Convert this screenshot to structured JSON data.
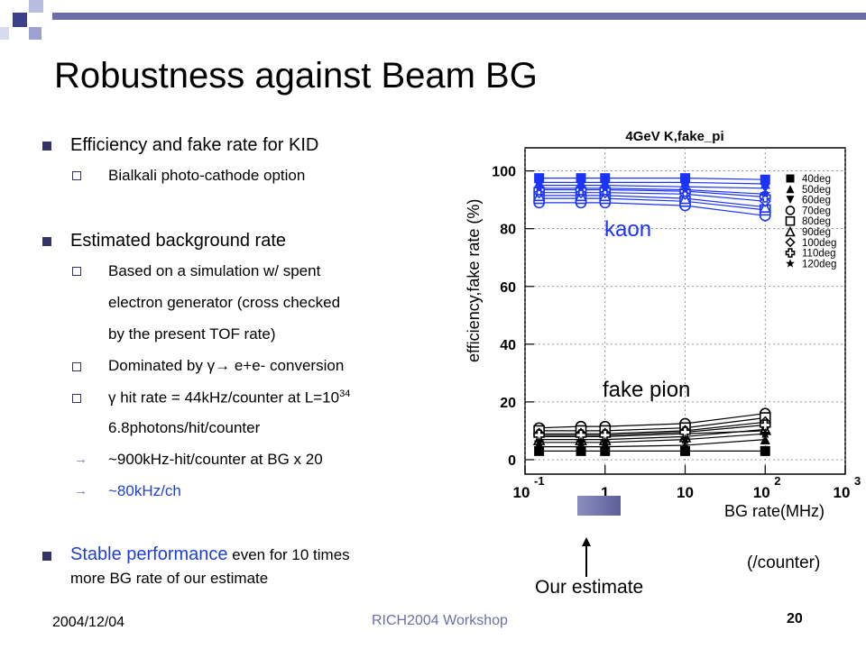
{
  "slide": {
    "title": "Robustness against Beam BG",
    "bullets": [
      {
        "text": "Efficiency and fake rate for KID"
      },
      {
        "text": "Bialkali photo-cathode option"
      },
      {
        "text": "Estimated background rate"
      },
      {
        "text": "Based on a simulation w/ spent"
      },
      {
        "text": "electron generator (cross checked"
      },
      {
        "text": "by the present TOF rate)"
      },
      {
        "text": "Dominated by γ→ e+e- conversion"
      },
      {
        "text": "γ hit rate = 44kHz/counter at L=10"
      },
      {
        "sup": "34"
      },
      {
        "text": "6.8photons/hit/counter"
      },
      {
        "text": "~900kHz-hit/counter at BG x 20"
      },
      {
        "text": "~80kHz/ch"
      },
      {
        "text_blue": "Stable performance",
        "text_rest": " even for 10 times"
      },
      {
        "text": "more BG rate of our estimate"
      }
    ],
    "estimate_label": "Our estimate",
    "unit_note": "(/counter)",
    "footer": {
      "date": "2004/12/04",
      "center": "RICH2004 Workshop",
      "page": "20"
    }
  },
  "chart_data": {
    "type": "scatter",
    "title": "4GeV K,fake_pi",
    "xlabel": "BG rate(MHz)",
    "ylabel": "efficiency,fake rate (%)",
    "x_scale": "log",
    "xlim": [
      0.1,
      1000
    ],
    "ylim": [
      -5,
      108
    ],
    "x_tick_labels": [
      "10^-1",
      "1",
      "10",
      "10^2",
      "10^3"
    ],
    "y_ticks": [
      0,
      20,
      40,
      60,
      80,
      100
    ],
    "annotations": [
      "kaon",
      "fake pion"
    ],
    "legend_position": "right",
    "x": [
      0.15,
      0.5,
      1,
      10,
      100
    ],
    "series": [
      {
        "name": "40deg",
        "group": "kaon",
        "values": [
          97.5,
          97.5,
          97.5,
          97.5,
          97
        ]
      },
      {
        "name": "50deg",
        "group": "kaon",
        "values": [
          96,
          96,
          96,
          96,
          95.5
        ]
      },
      {
        "name": "60deg",
        "group": "kaon",
        "values": [
          95,
          95,
          95,
          94.5,
          94
        ]
      },
      {
        "name": "70deg",
        "group": "kaon",
        "values": [
          89,
          89,
          89,
          88,
          84.5
        ]
      },
      {
        "name": "80deg",
        "group": "kaon",
        "values": [
          90.5,
          90.5,
          90.5,
          89.5,
          86.5
        ]
      },
      {
        "name": "90deg",
        "group": "kaon",
        "values": [
          91.5,
          91.5,
          91.5,
          90.5,
          87.5
        ]
      },
      {
        "name": "100deg",
        "group": "kaon",
        "values": [
          92.5,
          92.5,
          92.5,
          92,
          89.5
        ]
      },
      {
        "name": "110deg",
        "group": "kaon",
        "values": [
          93.5,
          93.5,
          93.5,
          93,
          91
        ]
      },
      {
        "name": "120deg",
        "group": "kaon",
        "values": [
          94,
          94,
          94,
          93.5,
          92
        ]
      },
      {
        "name": "40deg",
        "group": "fake pion",
        "values": [
          3,
          3,
          3,
          3,
          3
        ]
      },
      {
        "name": "50deg",
        "group": "fake pion",
        "values": [
          4.5,
          4.5,
          4.5,
          5,
          7
        ]
      },
      {
        "name": "60deg",
        "group": "fake pion",
        "values": [
          8,
          8,
          8,
          9,
          10
        ]
      },
      {
        "name": "70deg",
        "group": "fake pion",
        "values": [
          11,
          11.5,
          11.5,
          12.5,
          16
        ]
      },
      {
        "name": "80deg",
        "group": "fake pion",
        "values": [
          10,
          10,
          10,
          11,
          14.5
        ]
      },
      {
        "name": "90deg",
        "group": "fake pion",
        "values": [
          7,
          7,
          7,
          8,
          10.5
        ]
      },
      {
        "name": "100deg",
        "group": "fake pion",
        "values": [
          9,
          9,
          9,
          10,
          13
        ]
      },
      {
        "name": "110deg",
        "group": "fake pion",
        "values": [
          8.5,
          8.5,
          8.5,
          9.5,
          12
        ]
      },
      {
        "name": "120deg",
        "group": "fake pion",
        "values": [
          6,
          6,
          6,
          7,
          9
        ]
      }
    ],
    "colors": {
      "kaon": "#1a33ff",
      "fake pion": "#000000"
    }
  }
}
